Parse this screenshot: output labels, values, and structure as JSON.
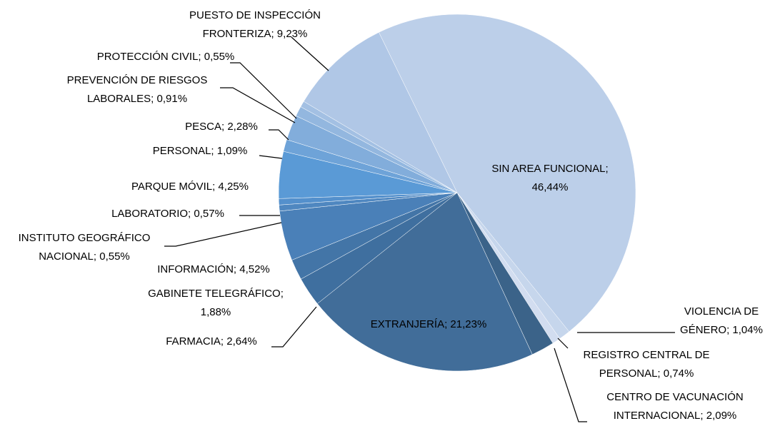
{
  "chart_data": {
    "type": "pie",
    "categories": [
      "SIN AREA FUNCIONAL",
      "VIOLENCIA DE GÉNERO",
      "REGISTRO CENTRAL DE PERSONAL",
      "CENTRO DE VACUNACIÓN INTERNACIONAL",
      "EXTRANJERÍA",
      "FARMACIA",
      "GABINETE TELEGRÁFICO",
      "INFORMACIÓN",
      "INSTITUTO GEOGRÁFICO NACIONAL",
      "LABORATORIO",
      "PARQUE MÓVIL",
      "PERSONAL",
      "PESCA",
      "PREVENCIÓN DE RIESGOS LABORALES",
      "PROTECCIÓN CIVIL",
      "PUESTO DE INSPECCIÓN FRONTERIZA"
    ],
    "values": [
      46.44,
      1.04,
      0.74,
      2.09,
      21.23,
      2.64,
      1.88,
      4.52,
      0.55,
      0.57,
      4.25,
      1.09,
      2.28,
      0.91,
      0.55,
      9.23
    ],
    "value_labels": [
      "SIN AREA FUNCIONAL;\n46,44%",
      "VIOLENCIA DE\nGÉNERO; 1,04%",
      "REGISTRO CENTRAL DE\nPERSONAL; 0,74%",
      "CENTRO DE VACUNACIÓN\nINTERNACIONAL; 2,09%",
      "EXTRANJERÍA; 21,23%",
      "FARMACIA; 2,64%",
      "GABINETE TELEGRÁFICO;\n1,88%",
      "INFORMACIÓN; 4,52%",
      "INSTITUTO GEOGRÁFICO\nNACIONAL; 0,55%",
      "LABORATORIO; 0,57%",
      "PARQUE MÓVIL; 4,25%",
      "PERSONAL; 1,09%",
      "PESCA; 2,28%",
      "PREVENCIÓN DE RIESGOS\nLABORALES; 0,91%",
      "PROTECCIÓN CIVIL; 0,55%",
      "PUESTO DE INSPECCIÓN\nFRONTERIZA; 9,23%"
    ],
    "colors": [
      "#bccfe9",
      "#c6d6ec",
      "#d2ddf0",
      "#3b6389",
      "#416d99",
      "#3f6f9f",
      "#4375a7",
      "#4a80b8",
      "#4f87c0",
      "#5490cc",
      "#5a9ad6",
      "#6ea3d8",
      "#82addb",
      "#93b7df",
      "#a3c0e3",
      "#b0c7e6"
    ]
  }
}
